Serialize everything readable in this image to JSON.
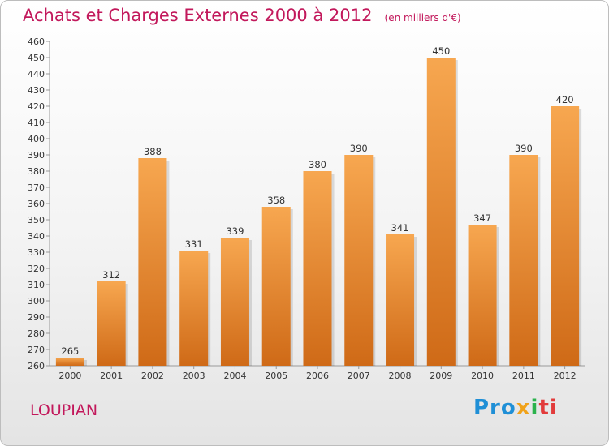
{
  "header": {
    "title": "Achats et Charges Externes 2000 à 2012",
    "unit": "(en milliers d'€)"
  },
  "location": "LOUPIAN",
  "logo": {
    "text": "Proxiti",
    "parts": [
      "Pro",
      "x",
      "i",
      "ti"
    ],
    "colors": [
      "#1f8fd6",
      "#f0a21a",
      "#2bb24c",
      "#e23b3b"
    ]
  },
  "colors": {
    "bar_top": "#f7a750",
    "bar_bottom": "#cf6a17",
    "title": "#c2185b"
  },
  "chart_data": {
    "type": "bar",
    "title": "Achats et Charges Externes 2000 à 2012",
    "subtitle": "(en milliers d'€)",
    "xlabel": "",
    "ylabel": "",
    "categories": [
      "2000",
      "2001",
      "2002",
      "2003",
      "2004",
      "2005",
      "2006",
      "2007",
      "2008",
      "2009",
      "2010",
      "2011",
      "2012"
    ],
    "values": [
      265,
      312,
      388,
      331,
      339,
      358,
      380,
      390,
      341,
      450,
      347,
      390,
      420
    ],
    "ylim": [
      260,
      460
    ],
    "ytick_step": 10,
    "grid": false,
    "legend": "none"
  }
}
